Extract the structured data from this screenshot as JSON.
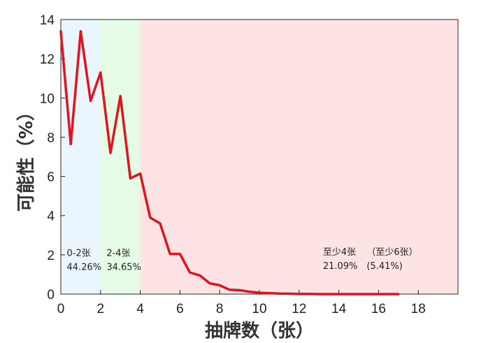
{
  "chart_data": {
    "type": "line",
    "xlabel": "抽牌数（张）",
    "ylabel": "可能性（%）",
    "xlim": [
      0,
      20
    ],
    "ylim": [
      0,
      14
    ],
    "x_ticks": [
      0,
      2,
      4,
      6,
      8,
      10,
      12,
      14,
      16,
      18
    ],
    "y_ticks": [
      0,
      2,
      4,
      6,
      8,
      10,
      12,
      14
    ],
    "grid": false,
    "line_color": "#e0141e",
    "regions": [
      {
        "x_start": 0,
        "x_end": 2,
        "color": "#eaf5fd",
        "label": "0-2张",
        "value": "44.26%"
      },
      {
        "x_start": 2,
        "x_end": 4,
        "color": "#e6fbe6",
        "label": "2-4张",
        "value": "34.65%"
      },
      {
        "x_start": 4,
        "x_end": 20,
        "color": "#fde3e3",
        "label": "",
        "value": ""
      }
    ],
    "annotations": [
      {
        "label": "至少4张",
        "value": "21.09%"
      },
      {
        "label": "（至少6张）",
        "value": "(5.41%)"
      }
    ],
    "series": [
      {
        "x": [
          0,
          0.5,
          1,
          1.5,
          2,
          2.5,
          3,
          3.5,
          4,
          4.5,
          5,
          5.5,
          6,
          6.5,
          7,
          7.5,
          8,
          8.5,
          9,
          9.5,
          10,
          10.5,
          11,
          11.5,
          12,
          12.5,
          13,
          13.5,
          14,
          14.5,
          15,
          15.5,
          16,
          16.5,
          17
        ],
        "y": [
          13.4,
          7.65,
          13.4,
          9.85,
          11.3,
          7.2,
          10.1,
          5.9,
          6.15,
          3.9,
          3.6,
          2.05,
          2.05,
          1.1,
          0.95,
          0.55,
          0.45,
          0.22,
          0.2,
          0.12,
          0.07,
          0.05,
          0.03,
          0.02,
          0.01,
          0.01,
          0.0,
          0.0,
          0.0,
          0.0,
          0.0,
          0.0,
          0.0,
          0.0,
          0.0
        ]
      }
    ]
  }
}
